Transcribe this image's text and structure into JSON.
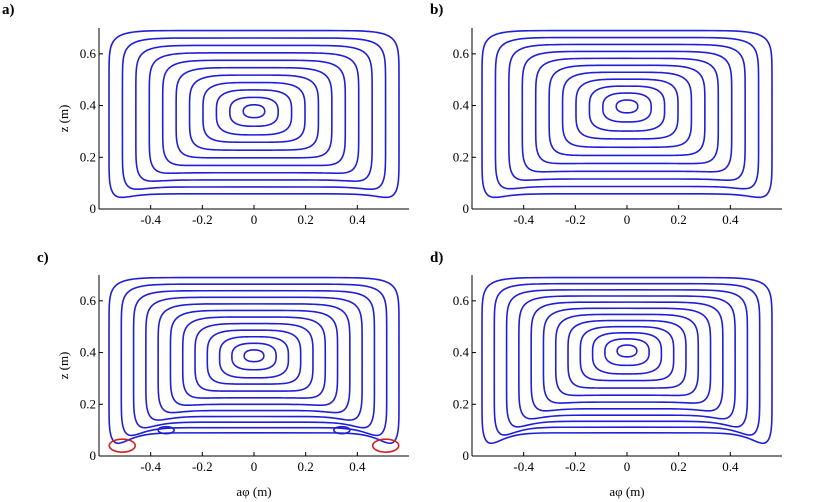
{
  "chart_data": [
    {
      "type": "contour",
      "panel_label": "a)",
      "xlabel": "",
      "ylabel": "z (m)",
      "xticks": [
        "-0.4",
        "-0.2",
        "0",
        "0.2",
        "0.4"
      ],
      "yticks": [
        "0",
        "0.2",
        "0.4",
        "0.6"
      ],
      "xlim": [
        -0.6,
        0.6
      ],
      "ylim": [
        0,
        0.7
      ],
      "center": [
        0,
        0.38
      ],
      "levels": 11,
      "secondary_cells": false,
      "colors": {
        "primary": "#1f1fd6",
        "secondary": "#d62020"
      }
    },
    {
      "type": "contour",
      "panel_label": "b)",
      "xlabel": "",
      "ylabel": "",
      "xticks": [
        "-0.4",
        "-0.2",
        "0",
        "0.2",
        "0.4"
      ],
      "yticks": [
        "0",
        "0.2",
        "0.4",
        "0.6"
      ],
      "xlim": [
        -0.6,
        0.6
      ],
      "ylim": [
        0,
        0.7
      ],
      "center": [
        0,
        0.4
      ],
      "levels": 11,
      "secondary_cells": false,
      "colors": {
        "primary": "#1f1fd6",
        "secondary": "#d62020"
      }
    },
    {
      "type": "contour",
      "panel_label": "c)",
      "xlabel": "aφ (m)",
      "ylabel": "z (m)",
      "xticks": [
        "-0.4",
        "-0.2",
        "0",
        "0.2",
        "0.4"
      ],
      "yticks": [
        "0",
        "0.2",
        "0.4",
        "0.6"
      ],
      "xlim": [
        -0.6,
        0.6
      ],
      "ylim": [
        0,
        0.7
      ],
      "center": [
        0,
        0.39
      ],
      "levels": 12,
      "secondary_cells": true,
      "colors": {
        "primary": "#1f1fd6",
        "secondary": "#d62020"
      }
    },
    {
      "type": "contour",
      "panel_label": "d)",
      "xlabel": "aφ (m)",
      "ylabel": "",
      "xticks": [
        "-0.4",
        "-0.2",
        "0",
        "0.2",
        "0.4"
      ],
      "yticks": [
        "0",
        "0.2",
        "0.4",
        "0.6"
      ],
      "xlim": [
        -0.6,
        0.6
      ],
      "ylim": [
        0,
        0.7
      ],
      "center": [
        0,
        0.41
      ],
      "levels": 12,
      "secondary_cells": false,
      "colors": {
        "primary": "#1f1fd6",
        "secondary": "#d62020"
      }
    }
  ]
}
